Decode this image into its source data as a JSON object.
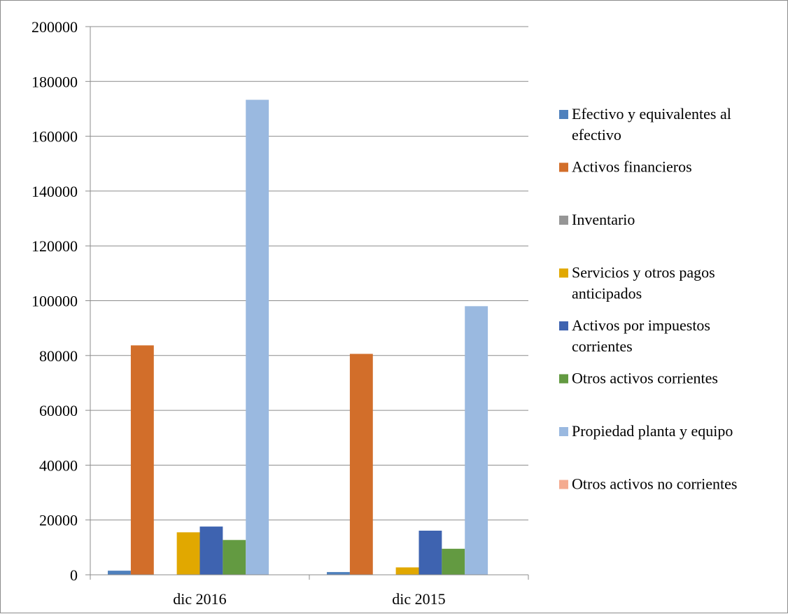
{
  "chart_data": {
    "type": "bar",
    "categories": [
      "dic 2016",
      "dic 2015"
    ],
    "ylim": [
      0,
      200000
    ],
    "yticks": [
      0,
      20000,
      40000,
      60000,
      80000,
      100000,
      120000,
      140000,
      160000,
      180000,
      200000
    ],
    "grid": true,
    "legend_position": "right",
    "title": "",
    "xlabel": "",
    "ylabel": "",
    "series": [
      {
        "name": "Efectivo y equivalentes al efectivo",
        "label_lines": [
          "Efectivo y equivalentes al",
          "efectivo"
        ],
        "color": "#4f81bd",
        "values": [
          1500,
          1000
        ]
      },
      {
        "name": "Activos financieros",
        "label_lines": [
          "Activos financieros"
        ],
        "color": "#d26e2a",
        "values": [
          83700,
          80600
        ]
      },
      {
        "name": "Inventario",
        "label_lines": [
          "Inventario"
        ],
        "color": "#969696",
        "values": [
          0,
          0
        ]
      },
      {
        "name": "Servicios y otros pagos anticipados",
        "label_lines": [
          "Servicios y otros pagos",
          "anticipados"
        ],
        "color": "#e1a800",
        "values": [
          15500,
          2700
        ]
      },
      {
        "name": "Activos por impuestos corrientes",
        "label_lines": [
          "Activos por impuestos",
          "corrientes"
        ],
        "color": "#3e63b0",
        "values": [
          17600,
          16100
        ]
      },
      {
        "name": "Otros activos corrientes",
        "label_lines": [
          "Otros activos corrientes"
        ],
        "color": "#639a41",
        "values": [
          12700,
          9500
        ]
      },
      {
        "name": "Propiedad planta y equipo",
        "label_lines": [
          "Propiedad planta y equipo"
        ],
        "color": "#9ab9e0",
        "values": [
          173300,
          98000
        ]
      },
      {
        "name": "Otros activos no corrientes",
        "label_lines": [
          "Otros activos no corrientes"
        ],
        "color": "#f4ab90",
        "values": [
          0,
          0
        ]
      }
    ]
  }
}
